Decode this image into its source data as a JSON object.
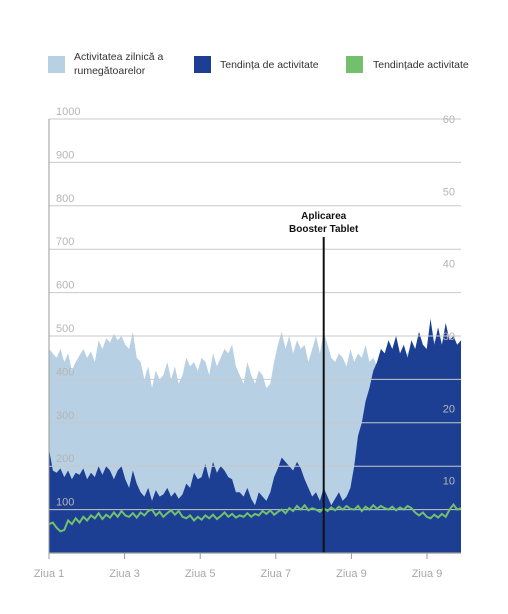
{
  "chart_data": {
    "type": "area",
    "title": "",
    "xlabel": "",
    "ylabel": "",
    "legend": {
      "position": "top",
      "items": [
        {
          "line1": "Activitatea zilnică a",
          "line2": "rumegătoarelor",
          "color": "#b7d0e4"
        },
        {
          "line1": "Tendința de activitate",
          "line2": "",
          "color": "#1c3f94"
        },
        {
          "line1": "Tendințade activitate",
          "line2": "",
          "color": "#72c06e"
        }
      ]
    },
    "axes": {
      "left": {
        "ticks": [
          "100",
          "200",
          "300",
          "400",
          "500",
          "600",
          "700",
          "800",
          "900",
          "1000"
        ],
        "ylim": [
          0,
          1000
        ]
      },
      "right": {
        "ticks": [
          "10",
          "20",
          "30",
          "40",
          "50",
          "60"
        ],
        "ylim": [
          0,
          60
        ]
      },
      "x": {
        "ticks": [
          "Ziua 1",
          "Ziua 3",
          "Ziua 5",
          "Ziua 7",
          "Ziua 9",
          "Ziua 9"
        ],
        "xlim": [
          0,
          10.8
        ]
      }
    },
    "grid": true,
    "annotation": {
      "line1": "Aplicarea",
      "line2": "Booster Tablet",
      "x": 7.2
    },
    "series": [
      {
        "name": "Activitatea zilnică a rumegătoarelor",
        "axis": "left",
        "color": "#b7d0e4",
        "x": [
          0,
          0.1,
          0.2,
          0.3,
          0.4,
          0.5,
          0.6,
          0.7,
          0.8,
          0.9,
          1.0,
          1.1,
          1.2,
          1.3,
          1.4,
          1.5,
          1.6,
          1.7,
          1.8,
          1.9,
          2.0,
          2.1,
          2.2,
          2.3,
          2.4,
          2.5,
          2.6,
          2.7,
          2.8,
          2.9,
          3.0,
          3.1,
          3.2,
          3.3,
          3.4,
          3.5,
          3.6,
          3.7,
          3.8,
          3.9,
          4.0,
          4.1,
          4.2,
          4.3,
          4.4,
          4.5,
          4.6,
          4.7,
          4.8,
          4.9,
          5.0,
          5.1,
          5.2,
          5.3,
          5.4,
          5.5,
          5.6,
          5.7,
          5.8,
          5.9,
          6.0,
          6.1,
          6.2,
          6.3,
          6.4,
          6.5,
          6.6,
          6.7,
          6.8,
          6.9,
          7.0,
          7.1,
          7.2,
          7.3,
          7.4,
          7.5,
          7.6,
          7.7,
          7.8,
          7.9,
          8.0,
          8.1,
          8.2,
          8.3,
          8.4,
          8.5,
          8.6,
          8.7,
          8.8,
          8.9,
          9.0,
          9.1,
          9.2,
          9.3,
          9.4,
          9.5,
          9.6,
          9.7,
          9.8,
          9.9,
          10.0,
          10.1,
          10.2,
          10.3,
          10.4,
          10.5,
          10.6,
          10.7,
          10.8
        ],
        "values": [
          470,
          460,
          450,
          470,
          440,
          460,
          420,
          440,
          455,
          470,
          450,
          465,
          440,
          490,
          470,
          495,
          485,
          505,
          490,
          500,
          480,
          470,
          510,
          450,
          440,
          400,
          430,
          380,
          420,
          400,
          410,
          440,
          400,
          430,
          390,
          410,
          450,
          430,
          440,
          420,
          450,
          440,
          410,
          460,
          430,
          450,
          470,
          460,
          480,
          430,
          410,
          390,
          440,
          410,
          390,
          420,
          410,
          380,
          390,
          440,
          480,
          510,
          470,
          500,
          460,
          490,
          470,
          480,
          440,
          470,
          500,
          460,
          510,
          480,
          450,
          440,
          460,
          450,
          430,
          470,
          440,
          460,
          450,
          480,
          440,
          450,
          430,
          460,
          440,
          450,
          440,
          470,
          420,
          450,
          460,
          480,
          430,
          470,
          450,
          460,
          480,
          490,
          470,
          440,
          500,
          470,
          490,
          460,
          470
        ]
      },
      {
        "name": "Tendința de activitate",
        "axis": "left",
        "color": "#1c3f94",
        "x": [
          0,
          0.1,
          0.2,
          0.3,
          0.4,
          0.5,
          0.6,
          0.7,
          0.8,
          0.9,
          1.0,
          1.1,
          1.2,
          1.3,
          1.4,
          1.5,
          1.6,
          1.7,
          1.8,
          1.9,
          2.0,
          2.1,
          2.2,
          2.3,
          2.4,
          2.5,
          2.6,
          2.7,
          2.8,
          2.9,
          3.0,
          3.1,
          3.2,
          3.3,
          3.4,
          3.5,
          3.6,
          3.7,
          3.8,
          3.9,
          4.0,
          4.1,
          4.2,
          4.3,
          4.4,
          4.5,
          4.6,
          4.7,
          4.8,
          4.9,
          5.0,
          5.1,
          5.2,
          5.3,
          5.4,
          5.5,
          5.6,
          5.7,
          5.8,
          5.9,
          6.0,
          6.1,
          6.2,
          6.3,
          6.4,
          6.5,
          6.6,
          6.7,
          6.8,
          6.9,
          7.0,
          7.1,
          7.2,
          7.3,
          7.4,
          7.5,
          7.6,
          7.7,
          7.8,
          7.9,
          8.0,
          8.1,
          8.2,
          8.3,
          8.4,
          8.5,
          8.6,
          8.7,
          8.8,
          8.9,
          9.0,
          9.1,
          9.2,
          9.3,
          9.4,
          9.5,
          9.6,
          9.7,
          9.8,
          9.9,
          10.0,
          10.1,
          10.2,
          10.3,
          10.4,
          10.5,
          10.6,
          10.7,
          10.8
        ],
        "values": [
          240,
          190,
          185,
          195,
          175,
          190,
          170,
          185,
          180,
          195,
          170,
          185,
          175,
          200,
          180,
          200,
          190,
          170,
          190,
          200,
          170,
          150,
          190,
          160,
          140,
          130,
          150,
          120,
          145,
          130,
          135,
          150,
          130,
          140,
          125,
          135,
          160,
          150,
          185,
          170,
          175,
          205,
          170,
          210,
          185,
          200,
          190,
          175,
          170,
          140,
          140,
          130,
          150,
          125,
          110,
          140,
          130,
          120,
          140,
          175,
          195,
          220,
          210,
          200,
          190,
          210,
          195,
          170,
          150,
          130,
          140,
          120,
          150,
          130,
          110,
          125,
          140,
          120,
          130,
          150,
          200,
          270,
          300,
          350,
          380,
          420,
          440,
          470,
          460,
          490,
          470,
          500,
          460,
          480,
          450,
          490,
          470,
          510,
          480,
          470,
          540,
          480,
          520,
          480,
          530,
          490,
          500,
          480,
          490
        ]
      },
      {
        "name": "Tendințade activitate",
        "axis": "right",
        "color": "#72c06e",
        "x": [
          0,
          0.1,
          0.2,
          0.3,
          0.4,
          0.5,
          0.6,
          0.7,
          0.8,
          0.9,
          1.0,
          1.1,
          1.2,
          1.3,
          1.4,
          1.5,
          1.6,
          1.7,
          1.8,
          1.9,
          2.0,
          2.1,
          2.2,
          2.3,
          2.4,
          2.5,
          2.6,
          2.7,
          2.8,
          2.9,
          3.0,
          3.1,
          3.2,
          3.3,
          3.4,
          3.5,
          3.6,
          3.7,
          3.8,
          3.9,
          4.0,
          4.1,
          4.2,
          4.3,
          4.4,
          4.5,
          4.6,
          4.7,
          4.8,
          4.9,
          5.0,
          5.1,
          5.2,
          5.3,
          5.4,
          5.5,
          5.6,
          5.7,
          5.8,
          5.9,
          6.0,
          6.1,
          6.2,
          6.3,
          6.4,
          6.5,
          6.6,
          6.7,
          6.8,
          6.9,
          7.0,
          7.1,
          7.2,
          7.3,
          7.4,
          7.5,
          7.6,
          7.7,
          7.8,
          7.9,
          8.0,
          8.1,
          8.2,
          8.3,
          8.4,
          8.5,
          8.6,
          8.7,
          8.8,
          8.9,
          9.0,
          9.1,
          9.2,
          9.3,
          9.4,
          9.5,
          9.6,
          9.7,
          9.8,
          9.9,
          10.0,
          10.1,
          10.2,
          10.3,
          10.4,
          10.5,
          10.6,
          10.7,
          10.8
        ],
        "values": [
          4.0,
          4.2,
          3.5,
          3.0,
          3.2,
          4.5,
          4.0,
          4.8,
          4.2,
          5.0,
          4.5,
          5.2,
          4.8,
          5.5,
          4.7,
          5.3,
          4.9,
          5.6,
          5.0,
          5.8,
          5.2,
          5.0,
          5.5,
          4.9,
          5.6,
          5.2,
          5.8,
          6.0,
          5.2,
          5.7,
          5.0,
          5.5,
          5.9,
          5.3,
          5.8,
          5.0,
          4.8,
          5.2,
          4.5,
          5.0,
          4.6,
          5.2,
          4.8,
          5.3,
          4.7,
          5.1,
          5.6,
          5.0,
          5.4,
          4.9,
          5.2,
          5.0,
          5.5,
          5.0,
          5.4,
          5.2,
          5.8,
          5.4,
          5.9,
          5.3,
          5.7,
          6.0,
          5.5,
          6.2,
          5.8,
          6.5,
          6.0,
          6.6,
          5.9,
          6.2,
          6.0,
          5.7,
          6.2,
          5.8,
          6.3,
          5.9,
          6.4,
          6.0,
          6.5,
          6.1,
          6.0,
          6.5,
          5.8,
          6.4,
          6.0,
          6.6,
          6.1,
          6.5,
          6.2,
          6.0,
          6.4,
          5.9,
          6.3,
          6.0,
          6.5,
          6.2,
          5.6,
          5.2,
          5.6,
          5.0,
          4.8,
          5.3,
          4.9,
          5.4,
          5.0,
          6.0,
          6.7,
          6.0,
          6.2
        ]
      }
    ]
  }
}
